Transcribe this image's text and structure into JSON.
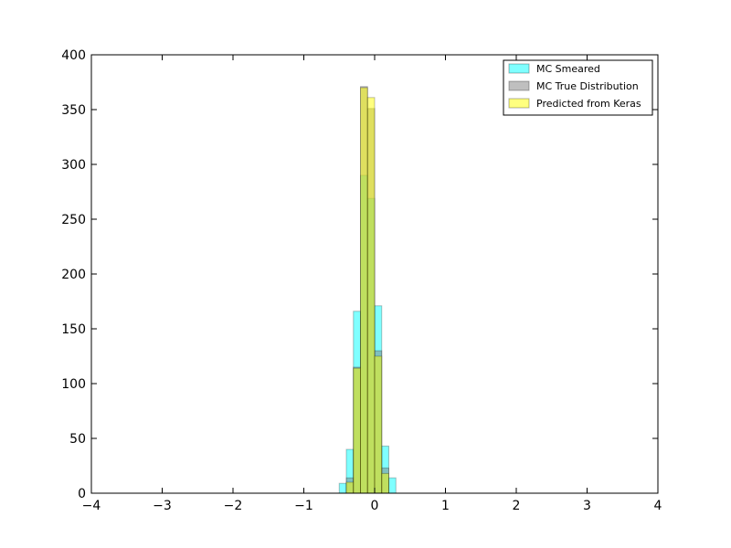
{
  "chart_data": {
    "type": "bar",
    "title": "",
    "xlabel": "",
    "ylabel": "",
    "xlim": [
      -4,
      4
    ],
    "ylim": [
      0,
      400
    ],
    "x_ticks": [
      -4,
      -3,
      -2,
      -1,
      0,
      1,
      2,
      3,
      4
    ],
    "y_ticks": [
      0,
      50,
      100,
      150,
      200,
      250,
      300,
      350,
      400
    ],
    "grid": false,
    "legend_position": "top-right",
    "bin_edges": [
      -0.5,
      -0.4,
      -0.3,
      -0.2,
      -0.1,
      0.0,
      0.1,
      0.2,
      0.3,
      0.4
    ],
    "series": [
      {
        "name": "MC Smeared",
        "color": "#00ffff",
        "values": [
          9,
          40,
          166,
          290,
          269,
          171,
          43,
          14,
          0
        ]
      },
      {
        "name": "MC True Distribution",
        "color": "#808080",
        "values": [
          0,
          14,
          115,
          371,
          351,
          130,
          23,
          0,
          0
        ]
      },
      {
        "name": "Predicted from Keras",
        "color": "#ffff00",
        "values": [
          0,
          10,
          114,
          370,
          361,
          125,
          18,
          0,
          0
        ]
      }
    ]
  }
}
